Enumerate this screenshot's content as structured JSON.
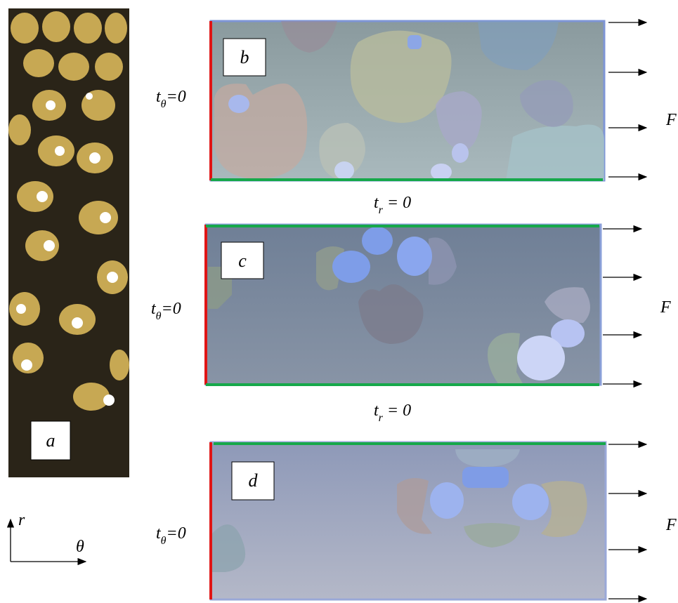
{
  "panels": [
    {
      "label": "a"
    },
    {
      "label": "b",
      "t_theta": {
        "symbol": "t",
        "subscript": "θ",
        "equation": "=0"
      },
      "force": "F"
    },
    {
      "label": "c",
      "t_theta": {
        "symbol": "t",
        "subscript": "θ",
        "equation": "=0"
      },
      "force": "F"
    },
    {
      "label": "d",
      "t_theta": {
        "symbol": "t",
        "subscript": "θ",
        "equation": "=0"
      },
      "force": "F"
    }
  ],
  "t_r_labels": [
    {
      "symbol": "t",
      "subscript": "r",
      "equation": " = 0"
    },
    {
      "symbol": "t",
      "subscript": "r",
      "equation": " = 0"
    }
  ],
  "axes": {
    "r": "r",
    "theta": "θ"
  }
}
